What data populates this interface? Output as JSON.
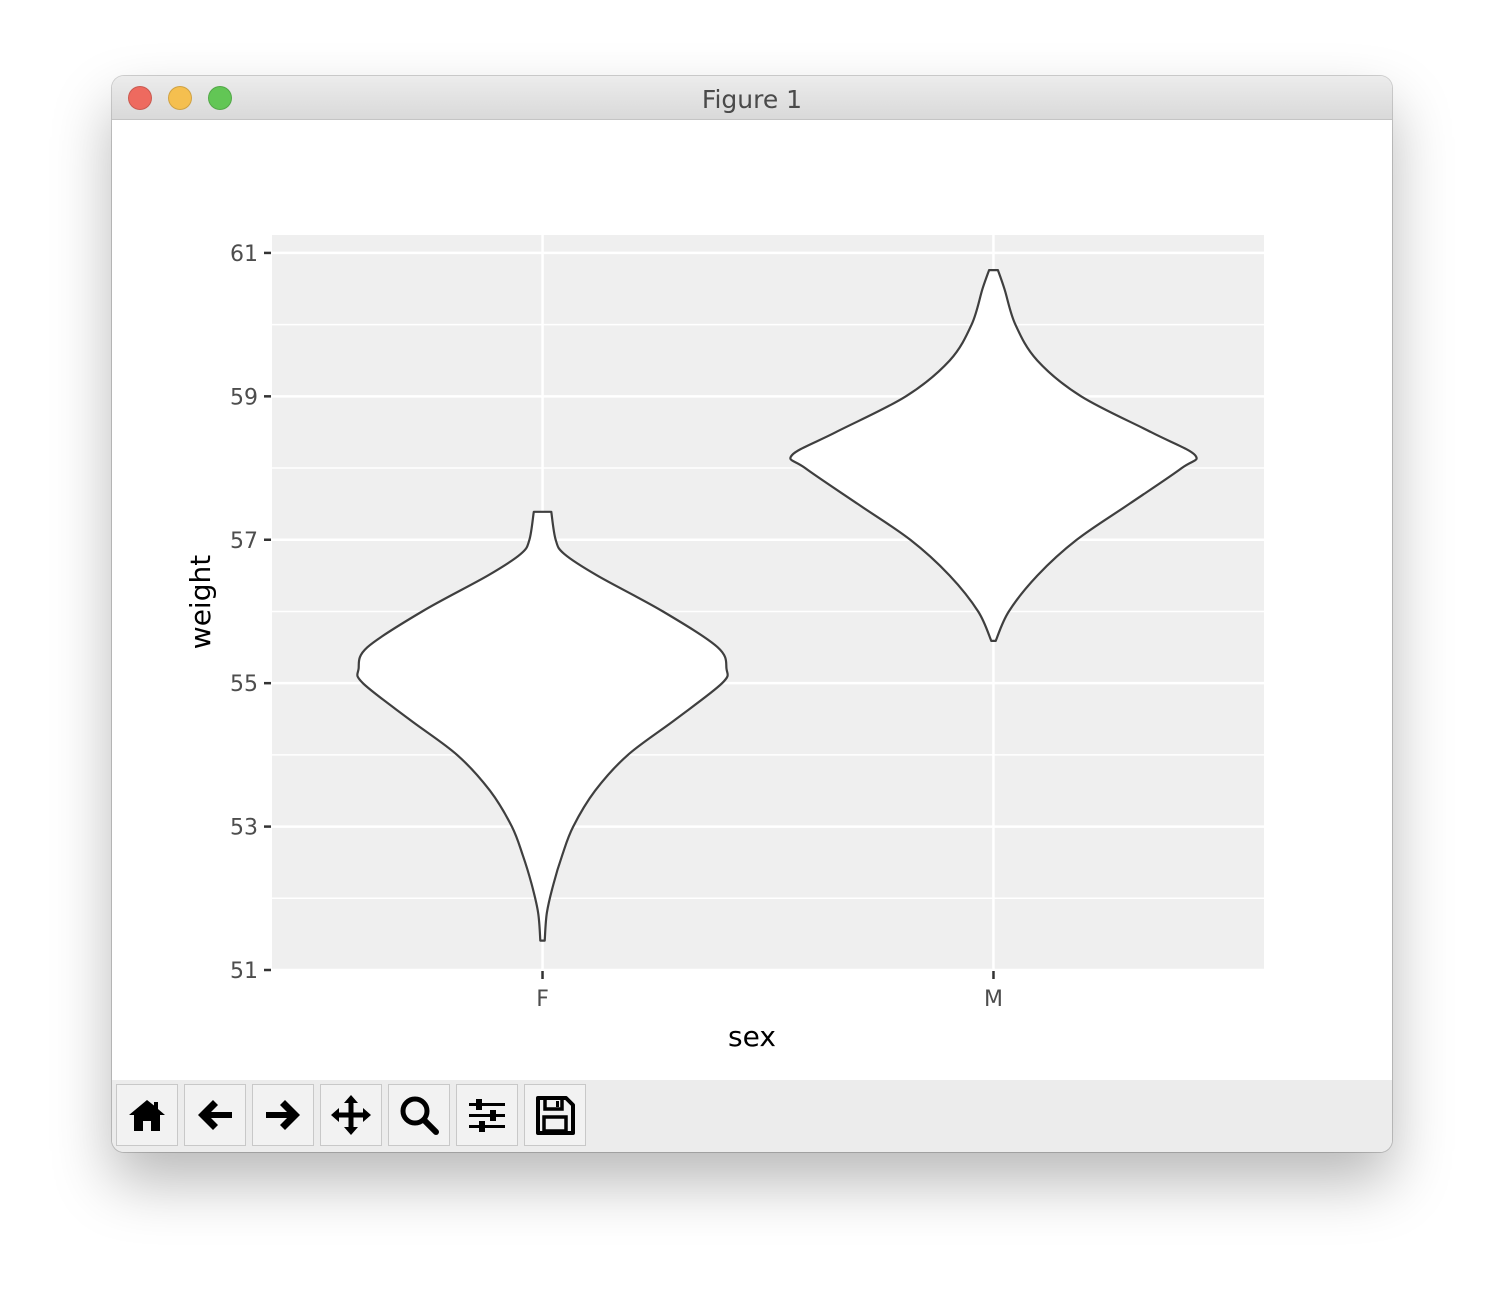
{
  "window": {
    "title": "Figure 1"
  },
  "toolbar": {
    "buttons": [
      {
        "name": "home-button",
        "icon": "home-icon"
      },
      {
        "name": "back-button",
        "icon": "arrow-left-icon"
      },
      {
        "name": "forward-button",
        "icon": "arrow-right-icon"
      },
      {
        "name": "pan-button",
        "icon": "move-icon"
      },
      {
        "name": "zoom-button",
        "icon": "magnifier-icon"
      },
      {
        "name": "configure-subplots-button",
        "icon": "sliders-icon"
      },
      {
        "name": "save-button",
        "icon": "floppy-disk-icon"
      }
    ]
  },
  "chart_data": {
    "type": "violin",
    "xlabel": "sex",
    "ylabel": "weight",
    "categories": [
      "F",
      "M"
    ],
    "ylim": [
      51,
      61.25
    ],
    "yticks": [
      51,
      53,
      55,
      57,
      59,
      61
    ],
    "grid": true,
    "colors": {
      "panel": "#efefef",
      "grid": "#ffffff",
      "outline": "#3f3f3f",
      "fill": "#ffffff"
    },
    "violins": [
      {
        "category": "F",
        "profile": [
          [
            51.41,
            0.01
          ],
          [
            51.8,
            0.02
          ],
          [
            52.2,
            0.05
          ],
          [
            52.6,
            0.09
          ],
          [
            53.0,
            0.14
          ],
          [
            53.5,
            0.24
          ],
          [
            54.0,
            0.39
          ],
          [
            54.5,
            0.61
          ],
          [
            55.0,
            0.82
          ],
          [
            55.2,
            0.84
          ],
          [
            55.5,
            0.8
          ],
          [
            56.0,
            0.55
          ],
          [
            56.5,
            0.25
          ],
          [
            56.8,
            0.1
          ],
          [
            57.0,
            0.06
          ],
          [
            57.39,
            0.04
          ]
        ]
      },
      {
        "category": "M",
        "profile": [
          [
            55.59,
            0.01
          ],
          [
            56.0,
            0.07
          ],
          [
            56.5,
            0.2
          ],
          [
            57.0,
            0.38
          ],
          [
            57.5,
            0.62
          ],
          [
            58.0,
            0.86
          ],
          [
            58.18,
            0.92
          ],
          [
            58.5,
            0.72
          ],
          [
            59.0,
            0.4
          ],
          [
            59.5,
            0.2
          ],
          [
            60.0,
            0.1
          ],
          [
            60.5,
            0.05
          ],
          [
            60.76,
            0.02
          ]
        ]
      }
    ]
  }
}
